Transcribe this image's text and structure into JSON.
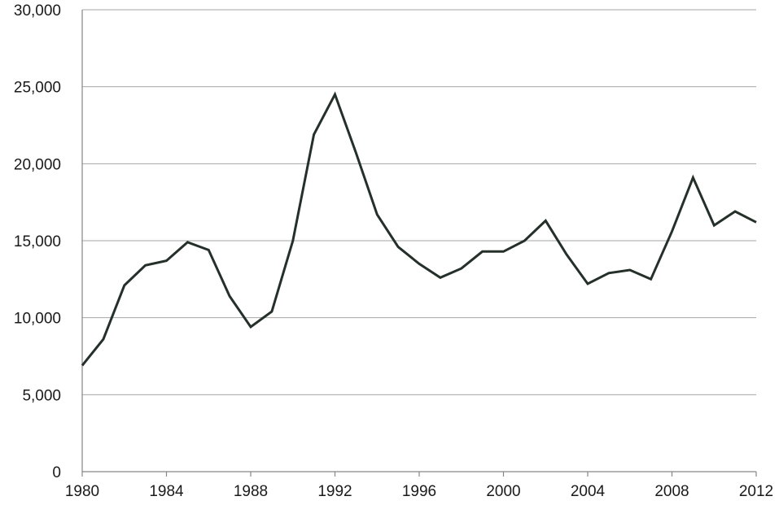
{
  "chart_data": {
    "type": "line",
    "title": "",
    "xlabel": "",
    "ylabel": "",
    "xlim": [
      1980,
      2012
    ],
    "ylim": [
      0,
      30000
    ],
    "grid": true,
    "x_tick_labels": [
      "1980",
      "1984",
      "1988",
      "1992",
      "1996",
      "2000",
      "2004",
      "2008",
      "2012"
    ],
    "y_tick_labels": [
      "0",
      "5,000",
      "10,000",
      "15,000",
      "20,000",
      "25,000",
      "30,000"
    ],
    "y_ticks": [
      0,
      5000,
      10000,
      15000,
      20000,
      25000,
      30000
    ],
    "x_ticks": [
      1980,
      1984,
      1988,
      1992,
      1996,
      2000,
      2004,
      2008,
      2012
    ],
    "line_color": "#243029",
    "series": [
      {
        "x": [
          1980,
          1981,
          1982,
          1983,
          1984,
          1985,
          1986,
          1987,
          1988,
          1989,
          1990,
          1991,
          1992,
          1993,
          1994,
          1995,
          1996,
          1997,
          1998,
          1999,
          2000,
          2001,
          2002,
          2003,
          2004,
          2005,
          2006,
          2007,
          2008,
          2009,
          2010,
          2011,
          2012
        ],
        "values": [
          6900,
          8600,
          12100,
          13400,
          13700,
          14900,
          14400,
          11400,
          9400,
          10400,
          15000,
          21900,
          24500,
          20700,
          16700,
          14600,
          13500,
          12600,
          13200,
          14300,
          14300,
          15000,
          16300,
          14100,
          12200,
          12900,
          13100,
          12500,
          15600,
          19100,
          16000,
          16900,
          16200
        ]
      }
    ]
  }
}
